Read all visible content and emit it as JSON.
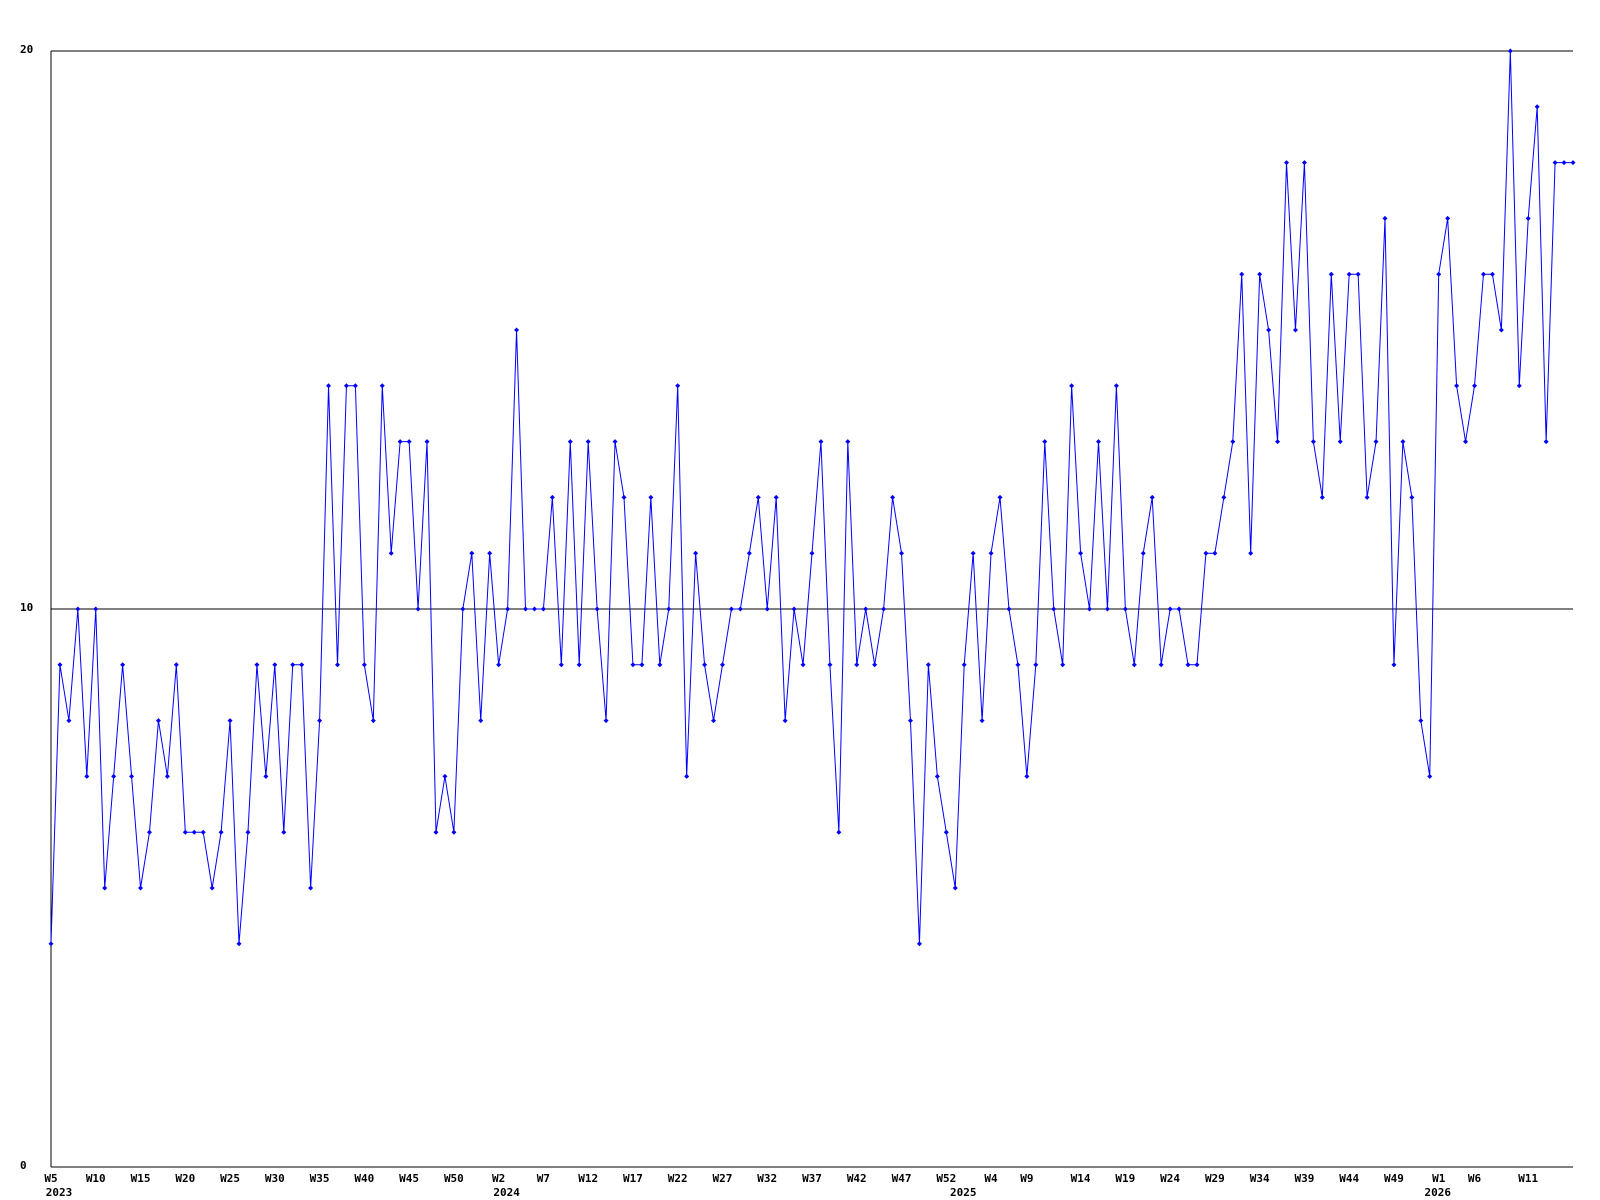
{
  "chart_data": {
    "type": "line",
    "categories": [
      "W5",
      null,
      null,
      null,
      null,
      "W10",
      null,
      null,
      null,
      null,
      "W15",
      null,
      null,
      null,
      null,
      "W20",
      null,
      null,
      null,
      null,
      "W25",
      null,
      null,
      null,
      null,
      "W30",
      null,
      null,
      null,
      null,
      "W35",
      null,
      null,
      null,
      null,
      "W40",
      null,
      null,
      null,
      null,
      "W45",
      null,
      null,
      null,
      null,
      "W50",
      null,
      null,
      null,
      null,
      "W2",
      null,
      null,
      null,
      null,
      "W7",
      null,
      null,
      null,
      null,
      "W12",
      null,
      null,
      null,
      null,
      "W17",
      null,
      null,
      null,
      null,
      "W22",
      null,
      null,
      null,
      null,
      "W27",
      null,
      null,
      null,
      null,
      "W32",
      null,
      null,
      null,
      null,
      "W37",
      null,
      null,
      null,
      null,
      "W42",
      null,
      null,
      null,
      null,
      "W47",
      null,
      null,
      null,
      null,
      "W52",
      null,
      null,
      null,
      null,
      "W4",
      null,
      null,
      null,
      "W9",
      null,
      null,
      null,
      null,
      null,
      "W14",
      null,
      null,
      null,
      null,
      "W19",
      null,
      null,
      null,
      null,
      "W24",
      null,
      null,
      null,
      null,
      "W29",
      null,
      null,
      null,
      null,
      "W34",
      null,
      null,
      null,
      null,
      "W39",
      null,
      null,
      null,
      null,
      "W44",
      null,
      null,
      null,
      null,
      "W49",
      null,
      null,
      null,
      null,
      "W1",
      null,
      null,
      null,
      "W6",
      null,
      null,
      null,
      null,
      null,
      "W11",
      null,
      null,
      null,
      null,
      null
    ],
    "year_labels": [
      "2023",
      null,
      null,
      null,
      null,
      null,
      null,
      null,
      null,
      null,
      null,
      null,
      null,
      null,
      null,
      null,
      null,
      null,
      null,
      null,
      null,
      null,
      null,
      null,
      null,
      null,
      null,
      null,
      null,
      null,
      null,
      null,
      null,
      null,
      null,
      null,
      null,
      null,
      null,
      null,
      null,
      null,
      null,
      null,
      null,
      null,
      null,
      null,
      null,
      null,
      "2024",
      null,
      null,
      null,
      null,
      null,
      null,
      null,
      null,
      null,
      null,
      null,
      null,
      null,
      null,
      null,
      null,
      null,
      null,
      null,
      null,
      null,
      null,
      null,
      null,
      null,
      null,
      null,
      null,
      null,
      null,
      null,
      null,
      null,
      null,
      null,
      null,
      null,
      null,
      null,
      null,
      null,
      null,
      null,
      null,
      null,
      null,
      null,
      null,
      null,
      null,
      "2025",
      null,
      null,
      null,
      null,
      null,
      null,
      null,
      null,
      null,
      null,
      null,
      null,
      null,
      null,
      null,
      null,
      null,
      null,
      null,
      null,
      null,
      null,
      null,
      null,
      null,
      null,
      null,
      null,
      null,
      null,
      null,
      null,
      null,
      null,
      null,
      null,
      null,
      null,
      null,
      null,
      null,
      null,
      null,
      null,
      null,
      null,
      null,
      null,
      null,
      null,
      null,
      null,
      "2026",
      null,
      null,
      null,
      null,
      null,
      null,
      null,
      null,
      null,
      null,
      null,
      null,
      null,
      null,
      null
    ],
    "series": [
      {
        "color": "#0000ff",
        "values": [
          4,
          9,
          8,
          10,
          7,
          10,
          5,
          7,
          9,
          7,
          5,
          6,
          8,
          7,
          9,
          6,
          6,
          6,
          5,
          6,
          8,
          4,
          6,
          9,
          7,
          9,
          6,
          9,
          9,
          5,
          8,
          14,
          9,
          14,
          14,
          9,
          8,
          14,
          11,
          13,
          13,
          10,
          13,
          6,
          7,
          6,
          10,
          11,
          8,
          11,
          9,
          10,
          15,
          10,
          10,
          10,
          12,
          9,
          13,
          9,
          13,
          10,
          8,
          13,
          12,
          9,
          9,
          12,
          9,
          10,
          14,
          7,
          11,
          9,
          8,
          9,
          10,
          10,
          11,
          12,
          10,
          12,
          8,
          10,
          9,
          11,
          13,
          9,
          6,
          13,
          9,
          10,
          9,
          10,
          12,
          11,
          8,
          4,
          9,
          7,
          6,
          5,
          9,
          11,
          8,
          11,
          12,
          10,
          9,
          7,
          9,
          13,
          10,
          9,
          14,
          11,
          10,
          13,
          10,
          14,
          10,
          9,
          11,
          12,
          9,
          10,
          10,
          9,
          9,
          11,
          11,
          12,
          13,
          16,
          11,
          16,
          15,
          13,
          18,
          15,
          18,
          13,
          12,
          16,
          13,
          16,
          16,
          12,
          13,
          17,
          9,
          13,
          12,
          8,
          7,
          16,
          17,
          14,
          13,
          14,
          16,
          16,
          15,
          20,
          14,
          17,
          19,
          13,
          18,
          18,
          18
        ]
      }
    ],
    "ylim": [
      0,
      20
    ],
    "yticks": [
      0,
      10,
      20
    ],
    "grid": true
  }
}
